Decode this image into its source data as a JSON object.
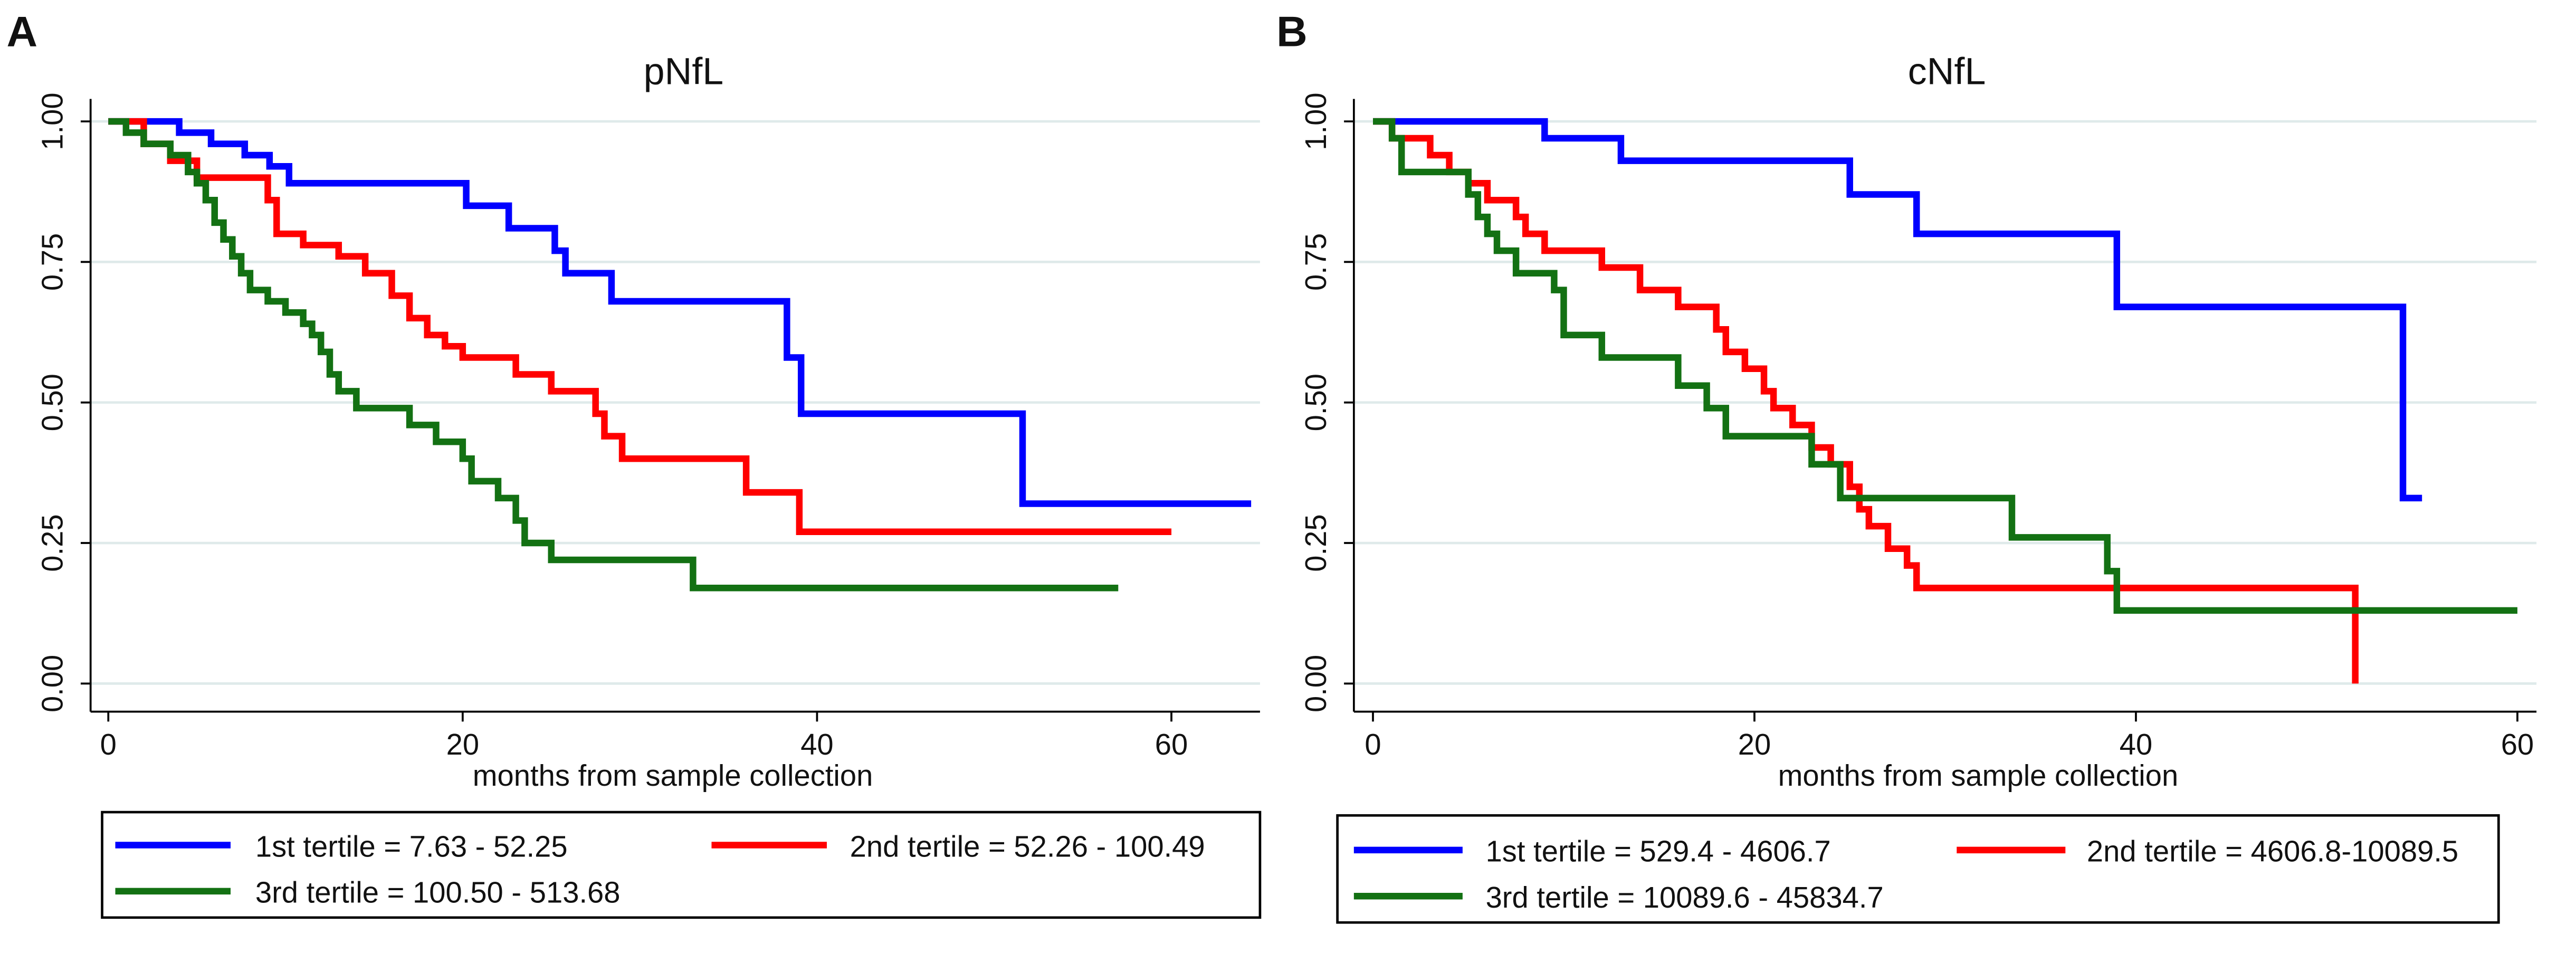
{
  "chart_data": [
    {
      "type": "step",
      "panel_label": "A",
      "title": "pNfL",
      "x_label": "months from sample collection",
      "xlim": [
        -1,
        65
      ],
      "xticks": [
        0,
        20,
        40,
        60
      ],
      "ylim": [
        -0.05,
        1.04
      ],
      "yticks": [
        {
          "value": 0,
          "label": "0.00"
        },
        {
          "value": 0.25,
          "label": "0.25"
        },
        {
          "value": 0.5,
          "label": "0.50"
        },
        {
          "value": 0.75,
          "label": "0.75"
        },
        {
          "value": 1,
          "label": "1.00"
        }
      ],
      "grid": true,
      "legend": "bottom",
      "series": [
        {
          "name": "1st tertile = 7.63 - 52.25",
          "color": "#0000ff",
          "x": [
            0,
            4,
            5.8,
            7.7,
            9.1,
            10.2,
            20.2,
            22.6,
            25.2,
            25.8,
            28.4,
            38.3,
            39.1,
            51.6,
            64.5
          ],
          "values": [
            1,
            0.98,
            0.96,
            0.94,
            0.92,
            0.89,
            0.85,
            0.81,
            0.77,
            0.73,
            0.68,
            0.58,
            0.48,
            0.32,
            0.32
          ]
        },
        {
          "name": "2nd tertile = 52.26 - 100.49",
          "color": "#ff0000",
          "x": [
            0,
            2,
            3.5,
            5,
            9,
            9.5,
            11,
            13,
            14.5,
            16,
            17,
            18,
            19,
            20,
            23,
            25,
            27.5,
            28,
            29,
            36,
            39,
            60
          ],
          "values": [
            1,
            0.96,
            0.93,
            0.9,
            0.86,
            0.8,
            0.78,
            0.76,
            0.73,
            0.69,
            0.65,
            0.62,
            0.6,
            0.58,
            0.55,
            0.52,
            0.48,
            0.44,
            0.4,
            0.34,
            0.27,
            0.27
          ]
        },
        {
          "name": "3rd tertile = 100.50 - 513.68",
          "color": "#137113",
          "x": [
            0,
            1,
            2,
            3.5,
            4.5,
            5,
            5.5,
            6,
            6.5,
            7,
            7.5,
            8,
            9,
            10,
            11,
            11.5,
            12,
            12.5,
            13,
            14,
            17,
            18.5,
            20,
            20.5,
            22,
            23,
            23.5,
            25,
            33,
            57
          ],
          "values": [
            1,
            0.98,
            0.96,
            0.94,
            0.91,
            0.89,
            0.86,
            0.82,
            0.79,
            0.76,
            0.73,
            0.7,
            0.68,
            0.66,
            0.64,
            0.62,
            0.59,
            0.55,
            0.52,
            0.49,
            0.46,
            0.43,
            0.4,
            0.36,
            0.33,
            0.29,
            0.25,
            0.22,
            0.17,
            0.17
          ]
        }
      ]
    },
    {
      "type": "step",
      "panel_label": "B",
      "title": "cNfL",
      "x_label": "months from sample collection",
      "xlim": [
        -1,
        61
      ],
      "xticks": [
        0,
        20,
        40,
        60
      ],
      "ylim": [
        -0.05,
        1.04
      ],
      "yticks": [
        {
          "value": 0,
          "label": "0.00"
        },
        {
          "value": 0.25,
          "label": "0.25"
        },
        {
          "value": 0.5,
          "label": "0.50"
        },
        {
          "value": 0.75,
          "label": "0.75"
        },
        {
          "value": 1,
          "label": "1.00"
        }
      ],
      "grid": true,
      "legend": "bottom",
      "series": [
        {
          "name": "1st tertile = 529.4 - 4606.7",
          "color": "#0000ff",
          "x": [
            0,
            9,
            13,
            25,
            28.5,
            39,
            54,
            55
          ],
          "values": [
            1,
            0.97,
            0.93,
            0.87,
            0.8,
            0.67,
            0.33,
            0.33
          ]
        },
        {
          "name": "2nd tertile = 4606.8-10089.5",
          "color": "#ff0000",
          "x": [
            0,
            1,
            3,
            4,
            5,
            6,
            7.5,
            8,
            9,
            12,
            14,
            16,
            18,
            18.5,
            19.5,
            20.5,
            21,
            22,
            23,
            24,
            25,
            25.5,
            26,
            27,
            28,
            28.5,
            51.5
          ],
          "values": [
            1,
            0.97,
            0.94,
            0.91,
            0.89,
            0.86,
            0.83,
            0.8,
            0.77,
            0.74,
            0.7,
            0.67,
            0.63,
            0.59,
            0.56,
            0.52,
            0.49,
            0.46,
            0.42,
            0.39,
            0.35,
            0.31,
            0.28,
            0.24,
            0.21,
            0.17,
            0
          ]
        },
        {
          "name": "3rd tertile = 10089.6 - 45834.7",
          "color": "#137113",
          "x": [
            0,
            1,
            1.5,
            5,
            5.5,
            6,
            6.5,
            7.5,
            9.5,
            10,
            12,
            16,
            17.5,
            18.5,
            23,
            24.5,
            33.5,
            38.5,
            39,
            60
          ],
          "values": [
            1,
            0.97,
            0.91,
            0.87,
            0.83,
            0.8,
            0.77,
            0.73,
            0.7,
            0.62,
            0.58,
            0.53,
            0.49,
            0.44,
            0.39,
            0.33,
            0.26,
            0.2,
            0.13,
            0.13
          ]
        }
      ]
    }
  ]
}
